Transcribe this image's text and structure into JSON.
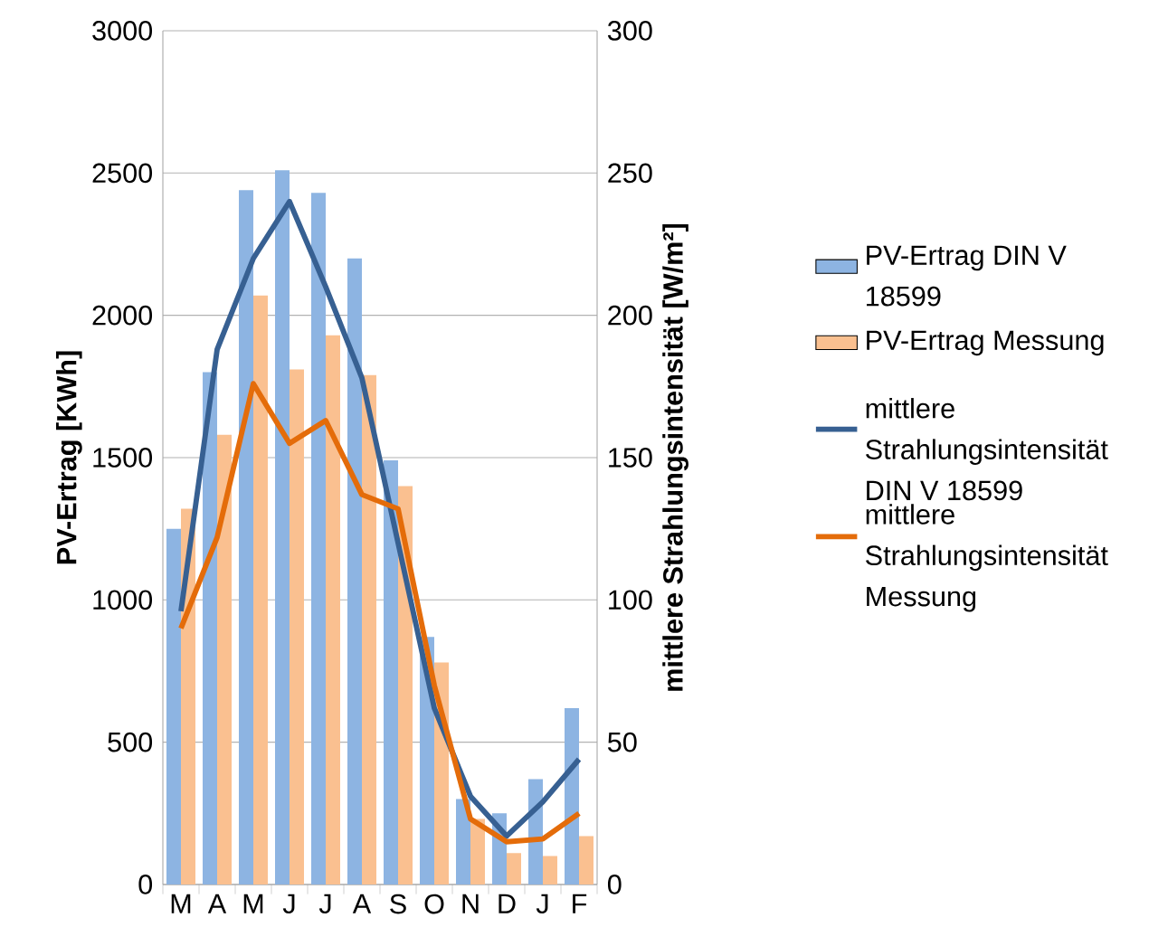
{
  "chart_data": {
    "type": "bar",
    "categories": [
      "M",
      "A",
      "M",
      "J",
      "J",
      "A",
      "S",
      "O",
      "N",
      "D",
      "J",
      "F"
    ],
    "ylabel": "PV-Ertrag [KWh]",
    "y2label": "mittlere Strahlungsintensität [W/m²]",
    "ylim": [
      0,
      3000
    ],
    "yticks": [
      0,
      500,
      1000,
      1500,
      2000,
      2500,
      3000
    ],
    "y2lim": [
      0,
      300
    ],
    "y2ticks": [
      0,
      50,
      100,
      150,
      200,
      250,
      300
    ],
    "grid": "y",
    "legend": "right",
    "series": [
      {
        "type": "bar",
        "name": "PV-Ertrag DIN V 18599",
        "color": "#8db4e2",
        "values": [
          1250,
          1800,
          2440,
          2510,
          2430,
          2200,
          1490,
          870,
          300,
          250,
          370,
          620
        ]
      },
      {
        "type": "bar",
        "name": "PV-Ertrag Messung",
        "color": "#fac090",
        "values": [
          1320,
          1580,
          2070,
          1810,
          1930,
          1790,
          1400,
          780,
          230,
          110,
          100,
          170
        ]
      },
      {
        "type": "line",
        "axis": "y2",
        "name": "mittlere Strahlungsintensität DIN V 18599",
        "color": "#376092",
        "values": [
          96,
          188,
          220,
          240,
          210,
          178,
          120,
          62,
          31,
          17,
          29,
          44
        ]
      },
      {
        "type": "line",
        "axis": "y2",
        "name": "mittlere Strahlungsintensität Messung",
        "color": "#e46c0a",
        "values": [
          90,
          122,
          176,
          155,
          163,
          137,
          132,
          70,
          23,
          15,
          16,
          25
        ]
      }
    ]
  }
}
